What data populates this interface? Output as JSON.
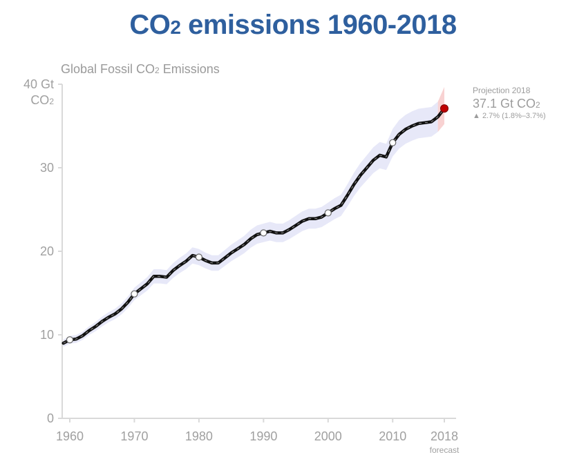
{
  "slide": {
    "title_prefix": "CO",
    "title_subscript": "2",
    "title_suffix": " emissions 1960-2018"
  },
  "chart_title": {
    "prefix": "Global Fossil CO",
    "subscript": "2",
    "suffix": " Emissions"
  },
  "projection": {
    "label": "Projection 2018",
    "value_prefix": "37.1 Gt CO",
    "value_subscript": "2",
    "change": "▲ 2.7% (1.8%–3.7%)"
  },
  "colors": {
    "title": "#2e5f9e",
    "band": "#c9cdf0",
    "line": "#111111",
    "projection_point": "#c00000",
    "projection_band": "#f4b4b4",
    "axis": "#d9d9d9",
    "text": "#a0a0a0"
  },
  "chart_data": {
    "type": "line",
    "title": "Global Fossil CO2 Emissions",
    "ylabel": "Gt CO2",
    "ylim": [
      0,
      40
    ],
    "xlim": [
      1960,
      2018
    ],
    "y_ticks": [
      {
        "value": 0,
        "label": "0"
      },
      {
        "value": 10,
        "label": "10"
      },
      {
        "value": 20,
        "label": "20"
      },
      {
        "value": 30,
        "label": "30"
      },
      {
        "value": 40,
        "label": "40 Gt"
      }
    ],
    "y_top_unit": {
      "prefix": "CO",
      "subscript": "2"
    },
    "x_ticks": [
      {
        "value": 1960,
        "label": "1960"
      },
      {
        "value": 1970,
        "label": "1970"
      },
      {
        "value": 1980,
        "label": "1980"
      },
      {
        "value": 1990,
        "label": "1990"
      },
      {
        "value": 2000,
        "label": "2000"
      },
      {
        "value": 2010,
        "label": "2010"
      },
      {
        "value": 2018,
        "label": "2018"
      }
    ],
    "x_forecast_label": "forecast",
    "uncertainty_fraction": 0.05,
    "series": [
      {
        "name": "Global fossil CO2 emissions (Gt CO2)",
        "points": [
          [
            1959,
            9.0
          ],
          [
            1960,
            9.4
          ],
          [
            1961,
            9.5
          ],
          [
            1962,
            9.9
          ],
          [
            1963,
            10.5
          ],
          [
            1964,
            11.0
          ],
          [
            1965,
            11.6
          ],
          [
            1966,
            12.1
          ],
          [
            1967,
            12.5
          ],
          [
            1968,
            13.1
          ],
          [
            1969,
            13.9
          ],
          [
            1970,
            14.9
          ],
          [
            1971,
            15.5
          ],
          [
            1972,
            16.1
          ],
          [
            1973,
            17.0
          ],
          [
            1974,
            17.0
          ],
          [
            1975,
            16.9
          ],
          [
            1976,
            17.7
          ],
          [
            1977,
            18.3
          ],
          [
            1978,
            18.8
          ],
          [
            1979,
            19.5
          ],
          [
            1980,
            19.3
          ],
          [
            1981,
            18.9
          ],
          [
            1982,
            18.6
          ],
          [
            1983,
            18.6
          ],
          [
            1984,
            19.2
          ],
          [
            1985,
            19.8
          ],
          [
            1986,
            20.3
          ],
          [
            1987,
            20.8
          ],
          [
            1988,
            21.5
          ],
          [
            1989,
            22.0
          ],
          [
            1990,
            22.2
          ],
          [
            1991,
            22.4
          ],
          [
            1992,
            22.2
          ],
          [
            1993,
            22.2
          ],
          [
            1994,
            22.6
          ],
          [
            1995,
            23.1
          ],
          [
            1996,
            23.6
          ],
          [
            1997,
            23.9
          ],
          [
            1998,
            23.9
          ],
          [
            1999,
            24.1
          ],
          [
            2000,
            24.6
          ],
          [
            2001,
            25.1
          ],
          [
            2002,
            25.5
          ],
          [
            2003,
            26.7
          ],
          [
            2004,
            28.0
          ],
          [
            2005,
            29.1
          ],
          [
            2006,
            30.0
          ],
          [
            2007,
            30.9
          ],
          [
            2008,
            31.5
          ],
          [
            2009,
            31.3
          ],
          [
            2010,
            33.0
          ],
          [
            2011,
            34.0
          ],
          [
            2012,
            34.6
          ],
          [
            2013,
            35.0
          ],
          [
            2014,
            35.3
          ],
          [
            2015,
            35.4
          ],
          [
            2016,
            35.5
          ],
          [
            2017,
            36.1
          ]
        ]
      }
    ],
    "markers": [
      {
        "year": 1960,
        "value": 9.4
      },
      {
        "year": 1970,
        "value": 14.9
      },
      {
        "year": 1980,
        "value": 19.3
      },
      {
        "year": 1990,
        "value": 22.2
      },
      {
        "year": 2000,
        "value": 24.6
      },
      {
        "year": 2010,
        "value": 33.0
      }
    ],
    "projection": {
      "year": 2018,
      "value": 37.1,
      "change_percent": 2.7,
      "range_percent": [
        1.8,
        3.7
      ]
    }
  }
}
